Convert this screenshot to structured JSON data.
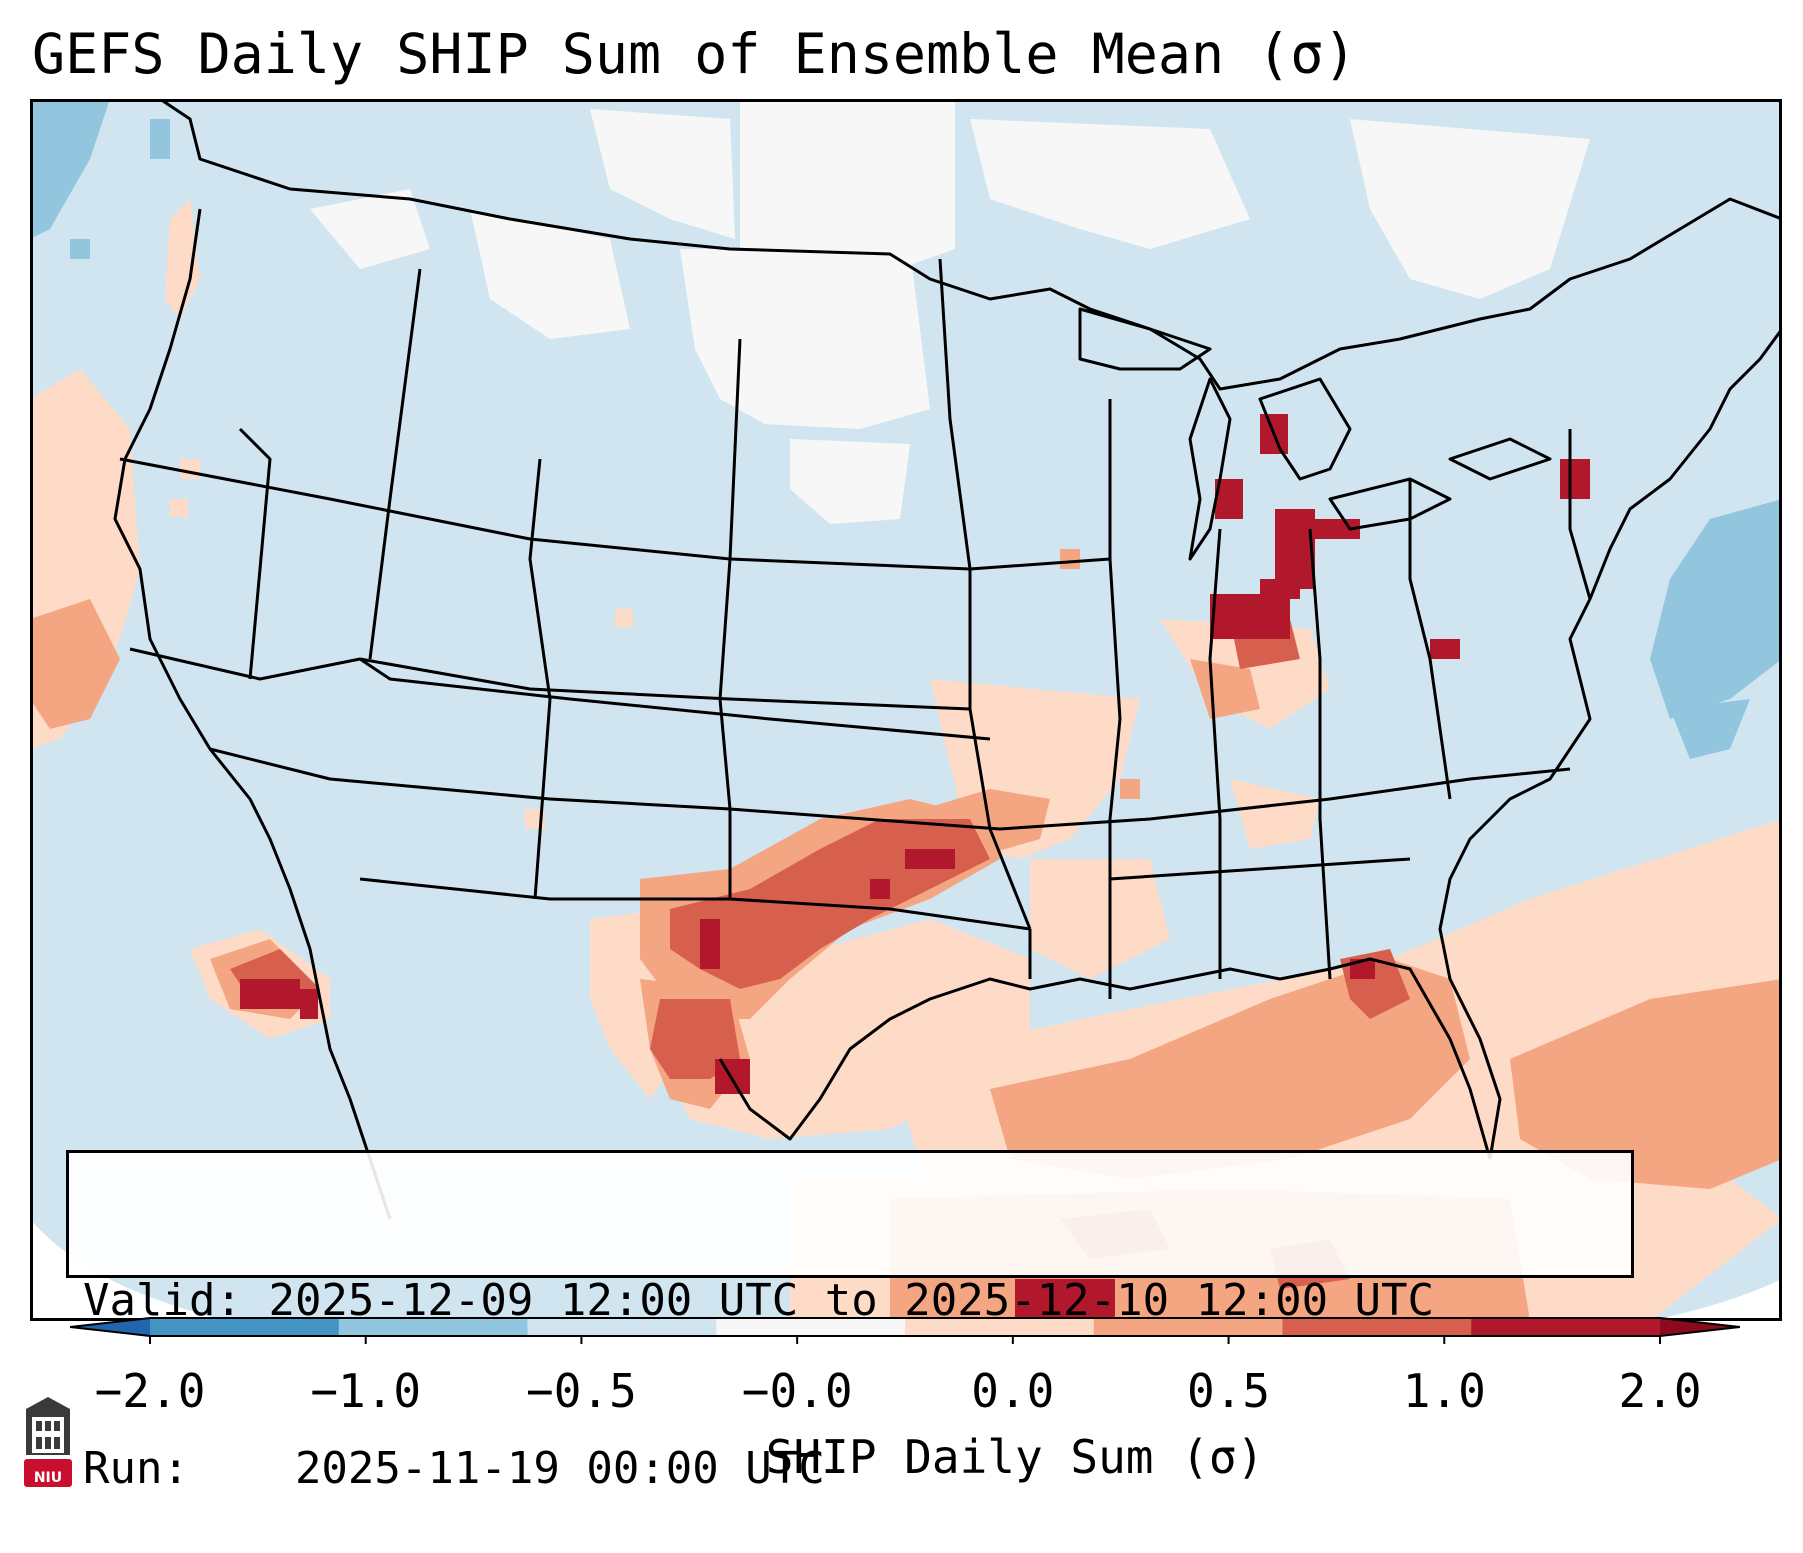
{
  "title": "GEFS Daily SHIP Sum of Ensemble Mean (σ)",
  "info": {
    "valid_label": "Valid:",
    "valid_value": "2025-12-09 12:00 UTC to 2025-12-10 12:00 UTC",
    "run_label": "Run:",
    "run_value": "2025-11-19 00:00 UTC"
  },
  "colorbar": {
    "label": "SHIP Daily Sum (σ)",
    "ticks": [
      "−2.0",
      "−1.0",
      "−0.5",
      "−0.0",
      "0.0",
      "0.5",
      "1.0",
      "2.0"
    ],
    "colors": [
      "#4393c3",
      "#92c5de",
      "#d1e5f0",
      "#f7f7f7",
      "#fddbc7",
      "#f4a582",
      "#d6604d",
      "#b2182b"
    ]
  },
  "logo": {
    "text": "NIU",
    "color": "#c8102e"
  },
  "map": {
    "background_color": "#d1e5f0",
    "no_data_color": "#ffffff",
    "region": "Contiguous United States"
  }
}
